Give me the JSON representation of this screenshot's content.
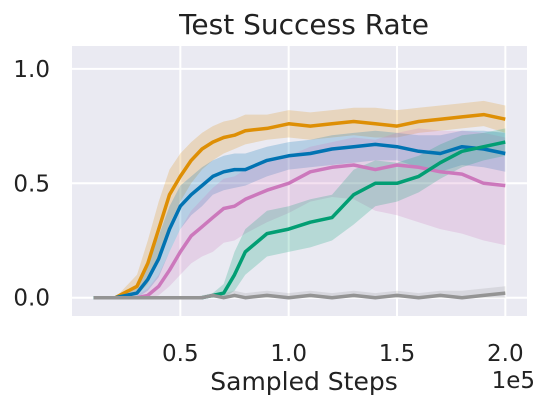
{
  "chart_data": {
    "type": "line",
    "title": "Test Success Rate",
    "xlabel": "Sampled Steps",
    "ylabel": "",
    "x_multiplier_label": "1e5",
    "xlim": [
      0.0,
      2.1
    ],
    "ylim": [
      -0.08,
      1.1
    ],
    "x_ticks": [
      0.5,
      1.0,
      1.5,
      2.0
    ],
    "x_tick_labels": [
      "0.5",
      "1.0",
      "1.5",
      "2.0"
    ],
    "y_ticks": [
      0.0,
      0.5,
      1.0
    ],
    "y_tick_labels": [
      "0.0",
      "0.5",
      "1.0"
    ],
    "grid": true,
    "legend": "none",
    "background": "#eaeaf2",
    "x": [
      0.1,
      0.2,
      0.3,
      0.35,
      0.4,
      0.45,
      0.5,
      0.55,
      0.6,
      0.65,
      0.7,
      0.75,
      0.8,
      0.9,
      1.0,
      1.1,
      1.2,
      1.3,
      1.4,
      1.5,
      1.6,
      1.7,
      1.8,
      1.9,
      2.0
    ],
    "series": [
      {
        "color": "#de8f05",
        "values": [
          0.0,
          0.0,
          0.05,
          0.15,
          0.3,
          0.45,
          0.53,
          0.6,
          0.65,
          0.68,
          0.7,
          0.71,
          0.73,
          0.74,
          0.76,
          0.75,
          0.76,
          0.77,
          0.76,
          0.75,
          0.77,
          0.78,
          0.79,
          0.8,
          0.78
        ],
        "lower": [
          0.0,
          0.0,
          0.01,
          0.06,
          0.18,
          0.32,
          0.42,
          0.5,
          0.56,
          0.6,
          0.63,
          0.65,
          0.67,
          0.69,
          0.7,
          0.69,
          0.7,
          0.71,
          0.7,
          0.7,
          0.72,
          0.73,
          0.74,
          0.75,
          0.72
        ],
        "upper": [
          0.0,
          0.0,
          0.1,
          0.25,
          0.42,
          0.56,
          0.63,
          0.68,
          0.72,
          0.75,
          0.77,
          0.78,
          0.8,
          0.8,
          0.82,
          0.81,
          0.82,
          0.83,
          0.83,
          0.82,
          0.83,
          0.84,
          0.85,
          0.86,
          0.84
        ]
      },
      {
        "color": "#0173b2",
        "values": [
          0.0,
          0.0,
          0.02,
          0.08,
          0.17,
          0.3,
          0.4,
          0.45,
          0.49,
          0.53,
          0.55,
          0.56,
          0.56,
          0.6,
          0.62,
          0.63,
          0.65,
          0.66,
          0.67,
          0.66,
          0.64,
          0.63,
          0.66,
          0.65,
          0.63
        ],
        "lower": [
          0.0,
          0.0,
          0.0,
          0.03,
          0.09,
          0.2,
          0.3,
          0.36,
          0.4,
          0.45,
          0.47,
          0.48,
          0.49,
          0.53,
          0.56,
          0.57,
          0.58,
          0.59,
          0.6,
          0.6,
          0.57,
          0.55,
          0.58,
          0.57,
          0.55
        ],
        "upper": [
          0.0,
          0.0,
          0.05,
          0.15,
          0.27,
          0.4,
          0.49,
          0.53,
          0.57,
          0.6,
          0.62,
          0.63,
          0.63,
          0.66,
          0.68,
          0.69,
          0.71,
          0.72,
          0.73,
          0.72,
          0.71,
          0.71,
          0.73,
          0.73,
          0.72
        ]
      },
      {
        "color": "#cc78bc",
        "values": [
          0.0,
          0.0,
          0.0,
          0.01,
          0.05,
          0.12,
          0.2,
          0.27,
          0.31,
          0.35,
          0.39,
          0.4,
          0.43,
          0.47,
          0.5,
          0.55,
          0.57,
          0.58,
          0.56,
          0.58,
          0.57,
          0.55,
          0.54,
          0.5,
          0.49
        ],
        "lower": [
          0.0,
          0.0,
          0.0,
          0.0,
          0.01,
          0.05,
          0.1,
          0.15,
          0.18,
          0.2,
          0.24,
          0.25,
          0.28,
          0.33,
          0.37,
          0.42,
          0.44,
          0.43,
          0.38,
          0.36,
          0.33,
          0.3,
          0.28,
          0.25,
          0.23
        ],
        "upper": [
          0.0,
          0.0,
          0.01,
          0.04,
          0.1,
          0.2,
          0.3,
          0.38,
          0.43,
          0.48,
          0.52,
          0.53,
          0.56,
          0.6,
          0.62,
          0.66,
          0.68,
          0.7,
          0.69,
          0.72,
          0.74,
          0.73,
          0.73,
          0.72,
          0.7
        ]
      },
      {
        "color": "#029e73",
        "values": [
          0.0,
          0.0,
          0.0,
          0.0,
          0.0,
          0.0,
          0.0,
          0.0,
          0.0,
          0.01,
          0.02,
          0.1,
          0.2,
          0.28,
          0.3,
          0.33,
          0.35,
          0.45,
          0.5,
          0.5,
          0.53,
          0.59,
          0.64,
          0.66,
          0.68
        ],
        "lower": [
          0.0,
          0.0,
          0.0,
          0.0,
          0.0,
          0.0,
          0.0,
          0.0,
          0.0,
          0.0,
          0.0,
          0.03,
          0.1,
          0.18,
          0.2,
          0.22,
          0.25,
          0.32,
          0.4,
          0.42,
          0.46,
          0.52,
          0.57,
          0.6,
          0.62
        ],
        "upper": [
          0.0,
          0.0,
          0.0,
          0.0,
          0.0,
          0.0,
          0.0,
          0.0,
          0.0,
          0.02,
          0.06,
          0.2,
          0.3,
          0.38,
          0.4,
          0.43,
          0.45,
          0.56,
          0.6,
          0.59,
          0.62,
          0.67,
          0.71,
          0.72,
          0.74
        ]
      },
      {
        "color": "#949494",
        "values": [
          0.0,
          0.0,
          0.0,
          0.0,
          0.0,
          0.0,
          0.0,
          0.0,
          0.0,
          0.01,
          0.0,
          0.01,
          0.0,
          0.01,
          0.0,
          0.01,
          0.0,
          0.01,
          0.0,
          0.01,
          0.0,
          0.01,
          0.0,
          0.01,
          0.02
        ],
        "lower": [
          0.0,
          0.0,
          0.0,
          0.0,
          0.0,
          0.0,
          0.0,
          0.0,
          0.0,
          0.0,
          0.0,
          0.0,
          0.0,
          0.0,
          0.0,
          0.0,
          0.0,
          0.0,
          0.0,
          0.0,
          0.0,
          0.0,
          0.0,
          0.0,
          0.0
        ],
        "upper": [
          0.0,
          0.0,
          0.0,
          0.0,
          0.0,
          0.0,
          0.0,
          0.0,
          0.01,
          0.02,
          0.02,
          0.03,
          0.02,
          0.03,
          0.02,
          0.03,
          0.02,
          0.03,
          0.02,
          0.03,
          0.02,
          0.03,
          0.03,
          0.04,
          0.05
        ]
      }
    ]
  }
}
